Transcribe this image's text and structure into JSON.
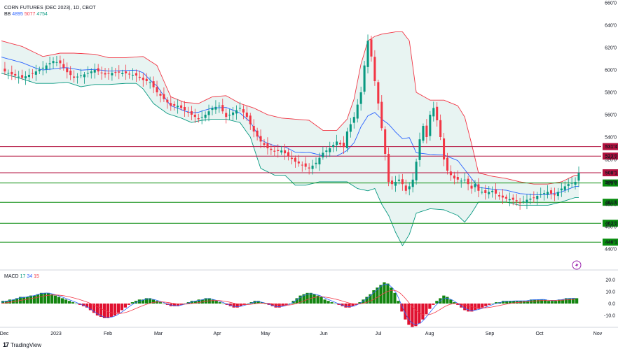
{
  "header": {
    "title": "CORN FUTURES (DEC 2023), 1D, CBOT",
    "bb_label": "BB",
    "bb_values": [
      "4895",
      "5077",
      "4754"
    ],
    "macd_label": "MACD",
    "macd_values": [
      "17",
      "34",
      "15"
    ]
  },
  "branding": {
    "logo_text": "TradingView"
  },
  "colors": {
    "up": "#089981",
    "down": "#f23645",
    "bb_upper": "#f23645",
    "bb_lower": "#089981",
    "bb_basis": "#2962ff",
    "bb_fill": "#e8f4f2",
    "resistance": "#b3123f",
    "support": "#088c0e",
    "macd_up": "#13850f",
    "macd_down": "#e0102f",
    "macd_line": "#2962ff",
    "signal_line": "#f23645"
  },
  "icons": {
    "replay": "lightning-icon",
    "logo": "tradingview-logo"
  },
  "chart_data": {
    "type": "candlestick",
    "title": "CORN FUTURES (DEC 2023), 1D, CBOT",
    "x_ticks": [
      "Dec",
      "2023",
      "Feb",
      "Mar",
      "Apr",
      "May",
      "Jun",
      "Jul",
      "Aug",
      "Sep",
      "Oct",
      "Nov"
    ],
    "y_ticks": [
      "660'0",
      "640'0",
      "620'0",
      "600'0",
      "580'0",
      "560'0",
      "540'0",
      "520'0",
      "500'0",
      "480'0",
      "460'0",
      "440'0"
    ],
    "ylim": [
      430,
      660
    ],
    "horizontal_levels": [
      {
        "label": "531'4",
        "value": 531.5,
        "kind": "resistance"
      },
      {
        "label": "523'0",
        "value": 523.0,
        "kind": "resistance"
      },
      {
        "label": "508'1",
        "value": 508.1,
        "kind": "resistance"
      },
      {
        "label": "499'0",
        "value": 499.0,
        "kind": "support"
      },
      {
        "label": "481'6",
        "value": 481.75,
        "kind": "support"
      },
      {
        "label": "463'0",
        "value": 463.0,
        "kind": "support"
      },
      {
        "label": "446'1",
        "value": 446.1,
        "kind": "support"
      }
    ],
    "close_path": [
      [
        0,
        600
      ],
      [
        3,
        596
      ],
      [
        6,
        593
      ],
      [
        9,
        597
      ],
      [
        12,
        602
      ],
      [
        15,
        608
      ],
      [
        17,
        606
      ],
      [
        19,
        598
      ],
      [
        21,
        593
      ],
      [
        24,
        596
      ],
      [
        27,
        600
      ],
      [
        30,
        596
      ],
      [
        33,
        598
      ],
      [
        36,
        597
      ],
      [
        39,
        595
      ],
      [
        41,
        591
      ],
      [
        43,
        589
      ],
      [
        45,
        580
      ],
      [
        47,
        574
      ],
      [
        49,
        568
      ],
      [
        51,
        568
      ],
      [
        53,
        564
      ],
      [
        55,
        560
      ],
      [
        57,
        556
      ],
      [
        59,
        560
      ],
      [
        61,
        566
      ],
      [
        63,
        568
      ],
      [
        65,
        558
      ],
      [
        67,
        562
      ],
      [
        69,
        566
      ],
      [
        71,
        558
      ],
      [
        73,
        545
      ],
      [
        75,
        536
      ],
      [
        77,
        530
      ],
      [
        79,
        527
      ],
      [
        81,
        528
      ],
      [
        83,
        523
      ],
      [
        85,
        518
      ],
      [
        87,
        515
      ],
      [
        89,
        512
      ],
      [
        91,
        517
      ],
      [
        93,
        526
      ],
      [
        95,
        530
      ],
      [
        97,
        536
      ],
      [
        99,
        531
      ],
      [
        100,
        545
      ],
      [
        102,
        558
      ],
      [
        104,
        580
      ],
      [
        105,
        604
      ],
      [
        106,
        626
      ],
      [
        107,
        612
      ],
      [
        108,
        590
      ],
      [
        109,
        570
      ],
      [
        110,
        548
      ],
      [
        111,
        525
      ],
      [
        112,
        500
      ],
      [
        113,
        498
      ],
      [
        114,
        500
      ],
      [
        115,
        502
      ],
      [
        116,
        498
      ],
      [
        117,
        492
      ],
      [
        118,
        496
      ],
      [
        119,
        502
      ],
      [
        120,
        518
      ],
      [
        121,
        538
      ],
      [
        122,
        550
      ],
      [
        123,
        540
      ],
      [
        124,
        560
      ],
      [
        125,
        566
      ],
      [
        126,
        555
      ],
      [
        127,
        540
      ],
      [
        128,
        520
      ],
      [
        129,
        510
      ],
      [
        130,
        506
      ],
      [
        131,
        503
      ],
      [
        132,
        502
      ],
      [
        133,
        501
      ],
      [
        134,
        502
      ],
      [
        135,
        498
      ],
      [
        136,
        494
      ],
      [
        137,
        498
      ],
      [
        138,
        492
      ],
      [
        140,
        490
      ],
      [
        142,
        492
      ],
      [
        144,
        487
      ],
      [
        146,
        485
      ],
      [
        148,
        484
      ],
      [
        150,
        481
      ],
      [
        152,
        484
      ],
      [
        154,
        486
      ],
      [
        156,
        489
      ],
      [
        158,
        491
      ],
      [
        160,
        488
      ],
      [
        162,
        494
      ],
      [
        164,
        498
      ],
      [
        166,
        500
      ],
      [
        167,
        508
      ]
    ],
    "bb_upper_path": [
      [
        0,
        626
      ],
      [
        6,
        621
      ],
      [
        12,
        612
      ],
      [
        17,
        615
      ],
      [
        21,
        615
      ],
      [
        27,
        614
      ],
      [
        31,
        611
      ],
      [
        36,
        611
      ],
      [
        41,
        612
      ],
      [
        45,
        604
      ],
      [
        49,
        576
      ],
      [
        53,
        571
      ],
      [
        57,
        570
      ],
      [
        61,
        576
      ],
      [
        65,
        577
      ],
      [
        69,
        570
      ],
      [
        73,
        566
      ],
      [
        77,
        560
      ],
      [
        81,
        557
      ],
      [
        85,
        556
      ],
      [
        89,
        555
      ],
      [
        93,
        546
      ],
      [
        97,
        546
      ],
      [
        100,
        556
      ],
      [
        102,
        574
      ],
      [
        104,
        605
      ],
      [
        106,
        626
      ],
      [
        108,
        630
      ],
      [
        110,
        632
      ],
      [
        112,
        633
      ],
      [
        114,
        634
      ],
      [
        116,
        634
      ],
      [
        118,
        626
      ],
      [
        120,
        580
      ],
      [
        124,
        573
      ],
      [
        128,
        573
      ],
      [
        132,
        568
      ],
      [
        134,
        558
      ],
      [
        136,
        534
      ],
      [
        138,
        508
      ],
      [
        142,
        505
      ],
      [
        146,
        503
      ],
      [
        150,
        500
      ],
      [
        154,
        498
      ],
      [
        158,
        498
      ],
      [
        162,
        500
      ],
      [
        166,
        506
      ]
    ],
    "bb_lower_path": [
      [
        0,
        597
      ],
      [
        6,
        592
      ],
      [
        10,
        588
      ],
      [
        15,
        588
      ],
      [
        19,
        589
      ],
      [
        23,
        585
      ],
      [
        27,
        587
      ],
      [
        31,
        587
      ],
      [
        36,
        588
      ],
      [
        39,
        588
      ],
      [
        41,
        583
      ],
      [
        44,
        570
      ],
      [
        48,
        561
      ],
      [
        52,
        557
      ],
      [
        55,
        553
      ],
      [
        58,
        555
      ],
      [
        61,
        556
      ],
      [
        65,
        556
      ],
      [
        69,
        553
      ],
      [
        72,
        540
      ],
      [
        75,
        512
      ],
      [
        79,
        506
      ],
      [
        82,
        506
      ],
      [
        85,
        497
      ],
      [
        88,
        497
      ],
      [
        92,
        500
      ],
      [
        96,
        500
      ],
      [
        100,
        500
      ],
      [
        103,
        494
      ],
      [
        106,
        492
      ],
      [
        108,
        494
      ],
      [
        110,
        480
      ],
      [
        112,
        470
      ],
      [
        114,
        455
      ],
      [
        116,
        443
      ],
      [
        118,
        453
      ],
      [
        120,
        472
      ],
      [
        124,
        476
      ],
      [
        128,
        475
      ],
      [
        132,
        470
      ],
      [
        134,
        464
      ],
      [
        136,
        472
      ],
      [
        138,
        482
      ],
      [
        142,
        482
      ],
      [
        146,
        482
      ],
      [
        150,
        479
      ],
      [
        154,
        479
      ],
      [
        158,
        479
      ],
      [
        162,
        482
      ],
      [
        166,
        486
      ]
    ],
    "macd_hist": [
      2,
      2,
      3,
      3,
      4,
      5,
      5,
      5,
      6,
      6,
      7,
      8,
      8,
      8,
      7,
      6,
      5,
      4,
      3,
      2,
      1,
      0,
      -1,
      -2,
      -3,
      -5,
      -7,
      -9,
      -10,
      -11,
      -11,
      -10,
      -9,
      -7,
      -5,
      -3,
      -1,
      1,
      2,
      3,
      3,
      4,
      4,
      3,
      2,
      1,
      0,
      -1,
      -2,
      -2,
      -2,
      -1,
      0,
      1,
      2,
      2,
      3,
      3,
      4,
      4,
      3,
      2,
      1,
      0,
      -1,
      -2,
      -3,
      -3,
      -2,
      -1,
      0,
      1,
      2,
      2,
      1,
      0,
      -1,
      -2,
      -3,
      -3,
      -2,
      -1,
      0,
      2,
      4,
      6,
      7,
      8,
      8,
      7,
      6,
      5,
      3,
      2,
      1,
      0,
      -1,
      -2,
      -3,
      -3,
      -2,
      -1,
      1,
      3,
      5,
      7,
      10,
      12,
      14,
      16,
      15,
      12,
      8,
      2,
      -6,
      -12,
      -16,
      -18,
      -17,
      -15,
      -12,
      -8,
      -4,
      -1,
      2,
      4,
      6,
      5,
      3,
      1,
      -1,
      -3,
      -5,
      -6,
      -6,
      -5,
      -4,
      -3,
      -2,
      -1,
      0,
      1,
      1,
      2,
      2,
      2,
      2,
      2,
      2,
      2,
      2,
      3,
      3,
      3,
      3,
      3,
      2,
      2,
      2,
      3,
      3,
      4,
      4,
      4,
      4
    ]
  }
}
